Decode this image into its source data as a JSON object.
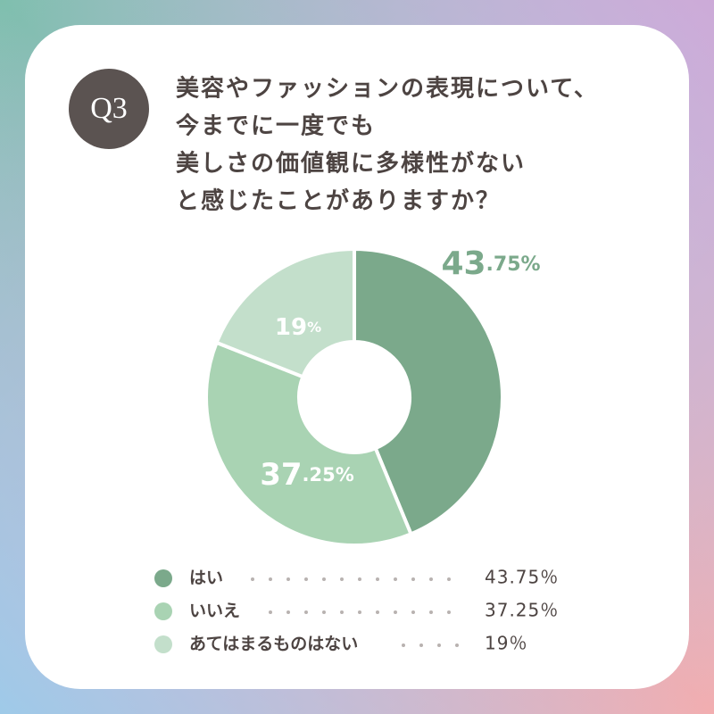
{
  "header": {
    "badge": "Q3",
    "title_lines": [
      "美容やファッションの表現について、",
      "今までに一度でも",
      "美しさの価値観に多様性がない",
      "と感じたことがありますか？"
    ]
  },
  "chart_data": {
    "type": "donut",
    "categories": [
      "はい",
      "いいえ",
      "あてはまるものはない"
    ],
    "values": [
      43.75,
      37.25,
      19
    ],
    "value_labels": [
      "43.75%",
      "37.25%",
      "19%"
    ],
    "legend_value_labels": [
      "43.75％",
      "37.25％",
      "19％"
    ],
    "colors": [
      "#7ba98b",
      "#a9d3b3",
      "#c3dfcb"
    ]
  }
}
